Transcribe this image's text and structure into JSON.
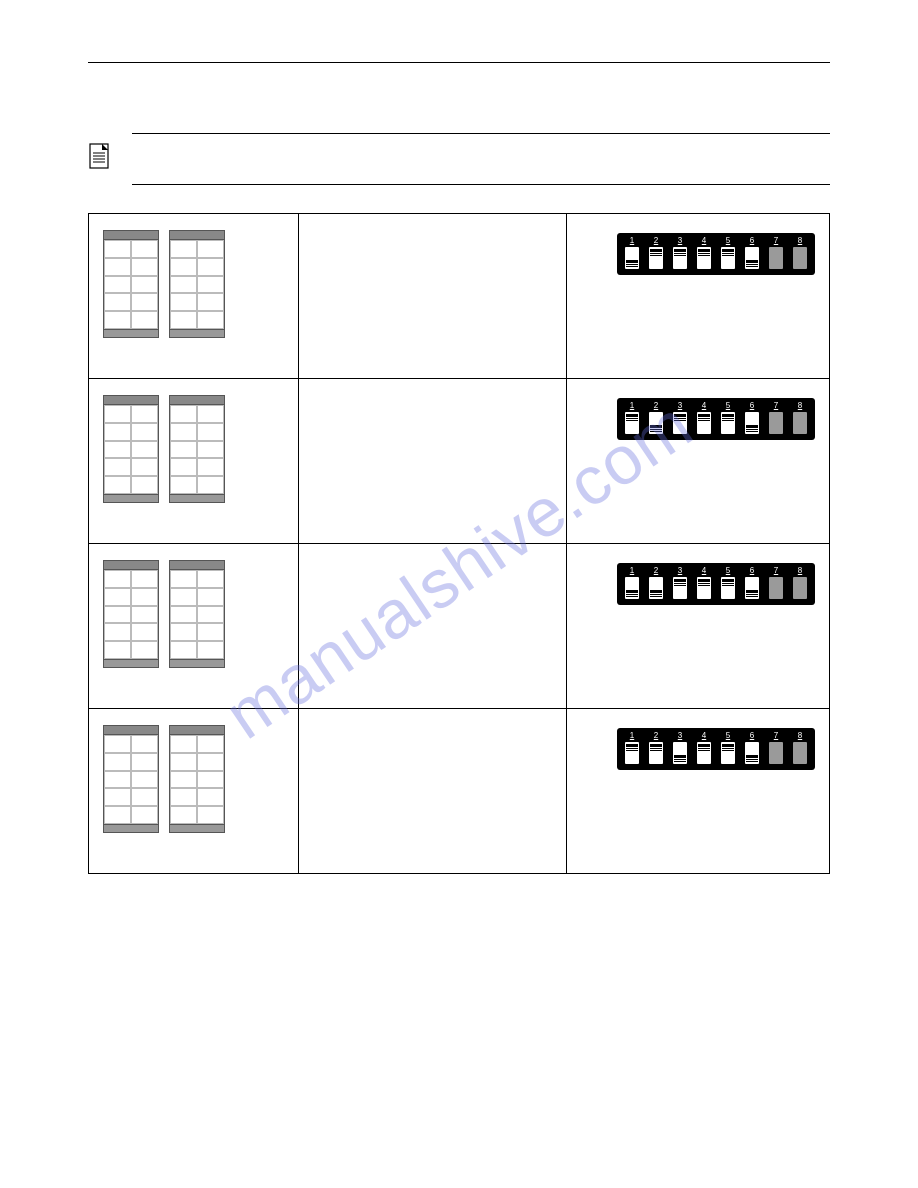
{
  "note": {
    "text": ""
  },
  "table": {
    "rows": [
      {
        "cabinet_count": 2,
        "cabinet_colors": {
          "frame": "#888888",
          "body": "#ffffff",
          "grid": "#bbbbbb",
          "base": "#999999"
        },
        "description": "",
        "dip": {
          "background": "#000000",
          "slot_active": "#ffffff",
          "slot_disabled": "#9a9a9a",
          "labels": [
            "1",
            "2",
            "3",
            "4",
            "5",
            "6",
            "7",
            "8"
          ],
          "switches": [
            "off",
            "on",
            "on",
            "on",
            "on",
            "off",
            "disabled",
            "disabled"
          ]
        }
      },
      {
        "cabinet_count": 2,
        "cabinet_colors": {
          "frame": "#888888",
          "body": "#ffffff",
          "grid": "#bbbbbb",
          "base": "#999999"
        },
        "description": "",
        "dip": {
          "background": "#000000",
          "slot_active": "#ffffff",
          "slot_disabled": "#9a9a9a",
          "labels": [
            "1",
            "2",
            "3",
            "4",
            "5",
            "6",
            "7",
            "8"
          ],
          "switches": [
            "on",
            "off",
            "on",
            "on",
            "on",
            "off",
            "disabled",
            "disabled"
          ]
        }
      },
      {
        "cabinet_count": 2,
        "cabinet_colors": {
          "frame": "#888888",
          "body": "#ffffff",
          "grid": "#bbbbbb",
          "base": "#999999"
        },
        "description": "",
        "dip": {
          "background": "#000000",
          "slot_active": "#ffffff",
          "slot_disabled": "#9a9a9a",
          "labels": [
            "1",
            "2",
            "3",
            "4",
            "5",
            "6",
            "7",
            "8"
          ],
          "switches": [
            "off",
            "off",
            "on",
            "on",
            "on",
            "off",
            "disabled",
            "disabled"
          ]
        }
      },
      {
        "cabinet_count": 2,
        "cabinet_colors": {
          "frame": "#888888",
          "body": "#ffffff",
          "grid": "#bbbbbb",
          "base": "#999999"
        },
        "description": "",
        "dip": {
          "background": "#000000",
          "slot_active": "#ffffff",
          "slot_disabled": "#9a9a9a",
          "labels": [
            "1",
            "2",
            "3",
            "4",
            "5",
            "6",
            "7",
            "8"
          ],
          "switches": [
            "on",
            "on",
            "off",
            "on",
            "on",
            "off",
            "disabled",
            "disabled"
          ]
        }
      }
    ]
  },
  "watermark": "manualshive.com"
}
